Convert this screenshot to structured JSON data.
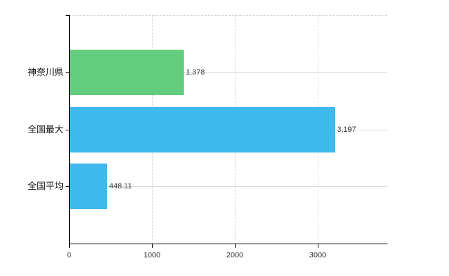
{
  "chart_data": {
    "type": "bar",
    "orientation": "horizontal",
    "title": "",
    "xlabel": "",
    "ylabel": "",
    "categories": [
      "神奈川県",
      "全国最大",
      "全国平均"
    ],
    "values": [
      1378,
      3197,
      448.11
    ],
    "value_labels": [
      "1,378",
      "3,197",
      "448.11"
    ],
    "bar_colors": [
      "#64cd7d",
      "#3fb9ee",
      "#3fb9ee"
    ],
    "xlim": [
      0,
      3833
    ],
    "x_ticks": [
      0,
      1000,
      2000,
      3000
    ],
    "x_tick_labels": [
      "0",
      "1000",
      "2000",
      "3000"
    ],
    "grid": true,
    "legend": false
  },
  "colors": {
    "background": "#ffffff",
    "axis": "#000000",
    "text": "#333333",
    "grid_horizontal": "#d6d6d6",
    "grid_vertical": "#ded5d5",
    "plot_top_border": "#d9cfcf",
    "bar_green": "#64cd7d",
    "bar_blue": "#3fb9ee"
  }
}
